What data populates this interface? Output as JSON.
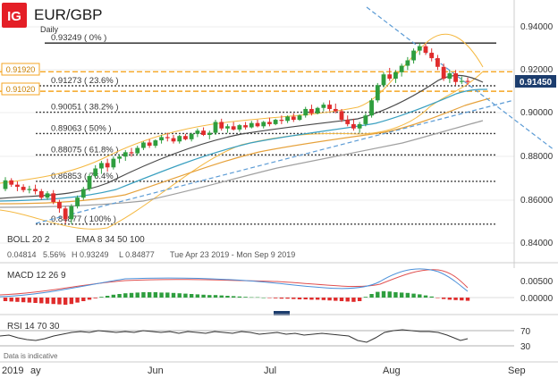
{
  "header": {
    "logo_text": "IG",
    "symbol": "EUR/GBP",
    "timeframe": "Daily"
  },
  "colors": {
    "logo_red": "#e41e26",
    "up_candle": "#2e9e3e",
    "down_candle": "#e02c2c",
    "fib_line": "#555555",
    "orange_band": "#f5a623",
    "trendline": "#5b9bd5",
    "price_tag_bg": "#1c3d6e"
  },
  "fib_levels": [
    {
      "label": "0.93249 ( 0% )",
      "value": 0.93249
    },
    {
      "label": "0.91273 ( 23.6% )",
      "value": 0.91273
    },
    {
      "label": "0.90051 ( 38.2% )",
      "value": 0.90051
    },
    {
      "label": "0.89063 ( 50% )",
      "value": 0.89063
    },
    {
      "label": "0.88075 ( 61.8% )",
      "value": 0.88075
    },
    {
      "label": "0.86853 ( 76.4% )",
      "value": 0.86853
    },
    {
      "label": "0.84877 ( 100% )",
      "value": 0.84877
    }
  ],
  "zone_labels": {
    "upper": "0.91920",
    "lower": "0.91020"
  },
  "current_price_label": "0.91450",
  "price_axis_ticks": [
    "0.94000",
    "0.92000",
    "0.90000",
    "0.88000",
    "0.86000",
    "0.84000"
  ],
  "indicator_info": {
    "boll": "BOLL  20  2",
    "ema": "EMA  8  34  50  100",
    "stats": [
      "0.04814",
      "5.56%",
      "H  0.93249",
      "L  0.84877",
      "Tue Apr 23 2019 - Mon Sep 9 2019"
    ]
  },
  "macd": {
    "label": "MACD  12  26  9",
    "ticks": [
      "0.00500",
      "0.00000"
    ]
  },
  "rsi": {
    "label": "RSI  14  70  30",
    "ticks": [
      "70",
      "30"
    ]
  },
  "footer_note": "Data is indicative",
  "x_axis_labels": [
    "2019",
    "ay",
    "Jun",
    "Jul",
    "Aug",
    "Sep"
  ],
  "chart_data": {
    "type": "candlestick",
    "ylim": [
      0.832,
      0.946
    ],
    "x_labels": [
      "May",
      "Jun",
      "Jul",
      "Aug",
      "Sep"
    ],
    "candles": [
      [
        0.865,
        0.8705,
        0.864,
        0.869
      ],
      [
        0.869,
        0.87,
        0.866,
        0.867
      ],
      [
        0.867,
        0.8685,
        0.864,
        0.866
      ],
      [
        0.866,
        0.8672,
        0.8635,
        0.8645
      ],
      [
        0.8645,
        0.8665,
        0.863,
        0.865
      ],
      [
        0.865,
        0.867,
        0.8625,
        0.864
      ],
      [
        0.864,
        0.865,
        0.86,
        0.861
      ],
      [
        0.861,
        0.864,
        0.86,
        0.863
      ],
      [
        0.863,
        0.8645,
        0.858,
        0.859
      ],
      [
        0.859,
        0.86,
        0.854,
        0.856
      ],
      [
        0.856,
        0.857,
        0.849,
        0.851
      ],
      [
        0.851,
        0.858,
        0.8488,
        0.857
      ],
      [
        0.857,
        0.862,
        0.856,
        0.861
      ],
      [
        0.861,
        0.866,
        0.86,
        0.865
      ],
      [
        0.865,
        0.872,
        0.864,
        0.871
      ],
      [
        0.871,
        0.876,
        0.87,
        0.8745
      ],
      [
        0.8745,
        0.878,
        0.872,
        0.877
      ],
      [
        0.877,
        0.879,
        0.873,
        0.875
      ],
      [
        0.875,
        0.88,
        0.874,
        0.879
      ],
      [
        0.879,
        0.881,
        0.877,
        0.88
      ],
      [
        0.88,
        0.883,
        0.878,
        0.882
      ],
      [
        0.882,
        0.884,
        0.88,
        0.8815
      ],
      [
        0.8815,
        0.885,
        0.8805,
        0.884
      ],
      [
        0.884,
        0.887,
        0.883,
        0.8865
      ],
      [
        0.8865,
        0.888,
        0.884,
        0.885
      ],
      [
        0.885,
        0.888,
        0.884,
        0.8875
      ],
      [
        0.8875,
        0.89,
        0.886,
        0.889
      ],
      [
        0.889,
        0.891,
        0.887,
        0.8885
      ],
      [
        0.8885,
        0.89,
        0.886,
        0.887
      ],
      [
        0.887,
        0.89,
        0.886,
        0.8895
      ],
      [
        0.8895,
        0.8905,
        0.8875,
        0.888
      ],
      [
        0.888,
        0.891,
        0.887,
        0.8905
      ],
      [
        0.8905,
        0.893,
        0.889,
        0.892
      ],
      [
        0.892,
        0.8935,
        0.8895,
        0.89
      ],
      [
        0.89,
        0.892,
        0.888,
        0.891
      ],
      [
        0.891,
        0.897,
        0.89,
        0.896
      ],
      [
        0.896,
        0.8975,
        0.892,
        0.893
      ],
      [
        0.893,
        0.895,
        0.891,
        0.894
      ],
      [
        0.894,
        0.896,
        0.892,
        0.8925
      ],
      [
        0.8925,
        0.895,
        0.8915,
        0.8945
      ],
      [
        0.8945,
        0.896,
        0.8925,
        0.8935
      ],
      [
        0.8935,
        0.8965,
        0.893,
        0.8955
      ],
      [
        0.8955,
        0.897,
        0.8935,
        0.894
      ],
      [
        0.894,
        0.8965,
        0.893,
        0.896
      ],
      [
        0.896,
        0.898,
        0.894,
        0.895
      ],
      [
        0.895,
        0.8975,
        0.8945,
        0.897
      ],
      [
        0.897,
        0.899,
        0.895,
        0.8965
      ],
      [
        0.8965,
        0.899,
        0.8955,
        0.8985
      ],
      [
        0.8985,
        0.9,
        0.896,
        0.897
      ],
      [
        0.897,
        0.8995,
        0.8965,
        0.899
      ],
      [
        0.899,
        0.903,
        0.898,
        0.902
      ],
      [
        0.902,
        0.904,
        0.899,
        0.9
      ],
      [
        0.9,
        0.903,
        0.8995,
        0.9025
      ],
      [
        0.9025,
        0.905,
        0.901,
        0.904
      ],
      [
        0.904,
        0.906,
        0.901,
        0.902
      ],
      [
        0.902,
        0.9045,
        0.9,
        0.901
      ],
      [
        0.901,
        0.902,
        0.896,
        0.897
      ],
      [
        0.897,
        0.899,
        0.894,
        0.895
      ],
      [
        0.895,
        0.8975,
        0.892,
        0.893
      ],
      [
        0.893,
        0.896,
        0.891,
        0.895
      ],
      [
        0.895,
        0.9,
        0.894,
        0.899
      ],
      [
        0.899,
        0.907,
        0.898,
        0.906
      ],
      [
        0.906,
        0.914,
        0.905,
        0.913
      ],
      [
        0.913,
        0.919,
        0.912,
        0.918
      ],
      [
        0.918,
        0.921,
        0.915,
        0.916
      ],
      [
        0.916,
        0.92,
        0.914,
        0.919
      ],
      [
        0.919,
        0.923,
        0.917,
        0.922
      ],
      [
        0.922,
        0.926,
        0.92,
        0.9245
      ],
      [
        0.9245,
        0.93,
        0.923,
        0.929
      ],
      [
        0.929,
        0.9325,
        0.927,
        0.931
      ],
      [
        0.931,
        0.932,
        0.927,
        0.928
      ],
      [
        0.928,
        0.93,
        0.924,
        0.9255
      ],
      [
        0.9255,
        0.927,
        0.92,
        0.9215
      ],
      [
        0.9215,
        0.923,
        0.915,
        0.916
      ],
      [
        0.916,
        0.92,
        0.914,
        0.9185
      ],
      [
        0.9185,
        0.92,
        0.913,
        0.9145
      ],
      [
        0.9145,
        0.917,
        0.9135,
        0.915
      ],
      [
        0.915,
        0.9165,
        0.913,
        0.9145
      ]
    ],
    "macd_histogram": [
      -0.001,
      -0.0011,
      -0.0012,
      -0.0013,
      -0.0014,
      -0.0015,
      -0.0016,
      -0.0017,
      -0.0018,
      -0.0019,
      -0.002,
      -0.0018,
      -0.0014,
      -0.001,
      -0.0006,
      -0.0002,
      0.0002,
      0.0005,
      0.0008,
      0.001,
      0.0012,
      0.0013,
      0.0014,
      0.0015,
      0.0015,
      0.0015,
      0.0014,
      0.0014,
      0.0013,
      0.0012,
      0.0011,
      0.001,
      0.0009,
      0.0008,
      0.0007,
      0.0007,
      0.0006,
      0.0005,
      0.0004,
      0.0003,
      0.0002,
      0.0001,
      0.0001,
      0.0,
      -0.0001,
      -0.0002,
      -0.0003,
      -0.0003,
      -0.0004,
      -0.0005,
      -0.0005,
      -0.0006,
      -0.0006,
      -0.0007,
      -0.0008,
      -0.0009,
      -0.001,
      -0.0011,
      -0.0012,
      -0.001,
      0.0002,
      0.001,
      0.0016,
      0.0018,
      0.0017,
      0.0015,
      0.0014,
      0.0013,
      0.0011,
      0.0009,
      0.0006,
      0.0003,
      -0.0001,
      -0.0004,
      -0.0006,
      -0.0007,
      -0.0008,
      -0.0009
    ]
  }
}
